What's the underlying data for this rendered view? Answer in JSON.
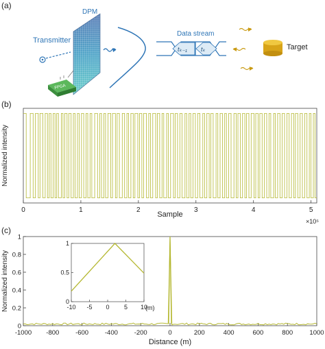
{
  "panel_labels": [
    "(a)",
    "(b)",
    "(c)"
  ],
  "schematic": {
    "transmitter": "Transmitter",
    "dpm": "DPM",
    "fpga": "FPGA",
    "data_stream": "Data stream",
    "symbol_prev": "tₖ₋₁",
    "symbol_curr": "tₖ",
    "target": "Target"
  },
  "colors": {
    "signal": "#b5b832",
    "blue_text": "#2e75b6",
    "target_gold": "#d8a418"
  },
  "chart_data": [
    {
      "id": "b",
      "type": "line",
      "ylabel": "Normalized intensity",
      "xlabel": "Sample",
      "x_exponent": "×10⁵",
      "xlim": [
        0,
        5.1
      ],
      "ylim": [
        -1.12,
        1.12
      ],
      "xticks": [
        "0",
        "1",
        "2",
        "3",
        "4",
        "5"
      ],
      "transitions": [
        0.05,
        0.12,
        0.17,
        0.21,
        0.26,
        0.29,
        0.34,
        0.38,
        0.42,
        0.45,
        0.48,
        0.52,
        0.55,
        0.58,
        0.61,
        0.66,
        0.69,
        0.72,
        0.76,
        0.79,
        0.83,
        0.87,
        0.9,
        0.94,
        0.97,
        1.01,
        1.05,
        1.09,
        1.12,
        1.16,
        1.19,
        1.24,
        1.29,
        1.33,
        1.36,
        1.4,
        1.43,
        1.47,
        1.52,
        1.55,
        1.6,
        1.63,
        1.67,
        1.72,
        1.76,
        1.8,
        1.83,
        1.87,
        1.91,
        1.94,
        1.99,
        2.02,
        2.06,
        2.09,
        2.14,
        2.18,
        2.21,
        2.25,
        2.3,
        2.33,
        2.37,
        2.41,
        2.44,
        2.49,
        2.52,
        2.56,
        2.61,
        2.64,
        2.68,
        2.72,
        2.76,
        2.81,
        2.84,
        2.88,
        2.91,
        2.95,
        2.99,
        3.03,
        3.07,
        3.12,
        3.15,
        3.19,
        3.23,
        3.26,
        3.3,
        3.35,
        3.38,
        3.42,
        3.46,
        3.5,
        3.53,
        3.57,
        3.61,
        3.66,
        3.7,
        3.73,
        3.77,
        3.81,
        3.85,
        3.88,
        3.92,
        3.96,
        4.01,
        4.04,
        4.08,
        4.11,
        4.15,
        4.19,
        4.23,
        4.27,
        4.3,
        4.35,
        4.38,
        4.42,
        4.46,
        4.5,
        4.54,
        4.58,
        4.62,
        4.66,
        4.7,
        4.73,
        4.77,
        4.81,
        4.85,
        4.89,
        4.93,
        4.97,
        5.0,
        5.04,
        5.07
      ]
    },
    {
      "id": "c",
      "type": "line",
      "ylabel": "Normalized intensity",
      "xlabel": "Distance (m)",
      "xlim": [
        -1000,
        1000
      ],
      "ylim": [
        0,
        1
      ],
      "xticks": [
        "-1000",
        "-800",
        "-600",
        "-400",
        "-200",
        "0",
        "200",
        "400",
        "600",
        "800",
        "1000"
      ],
      "yticks": [
        "0",
        "0.2",
        "0.4",
        "0.6",
        "0.8",
        "1"
      ],
      "peak": {
        "x": 0,
        "y": 1
      },
      "noise_level": 0.03
    },
    {
      "id": "c-inset",
      "type": "line",
      "xlabel": "(m)",
      "xlim": [
        -10,
        10
      ],
      "ylim": [
        0,
        1
      ],
      "xticks": [
        "-10",
        "-5",
        "0",
        "5",
        "10"
      ],
      "yticks": [
        "0",
        "0.5",
        "1"
      ],
      "x": [
        -10,
        2,
        10
      ],
      "y": [
        0.18,
        1,
        0.49
      ]
    }
  ]
}
